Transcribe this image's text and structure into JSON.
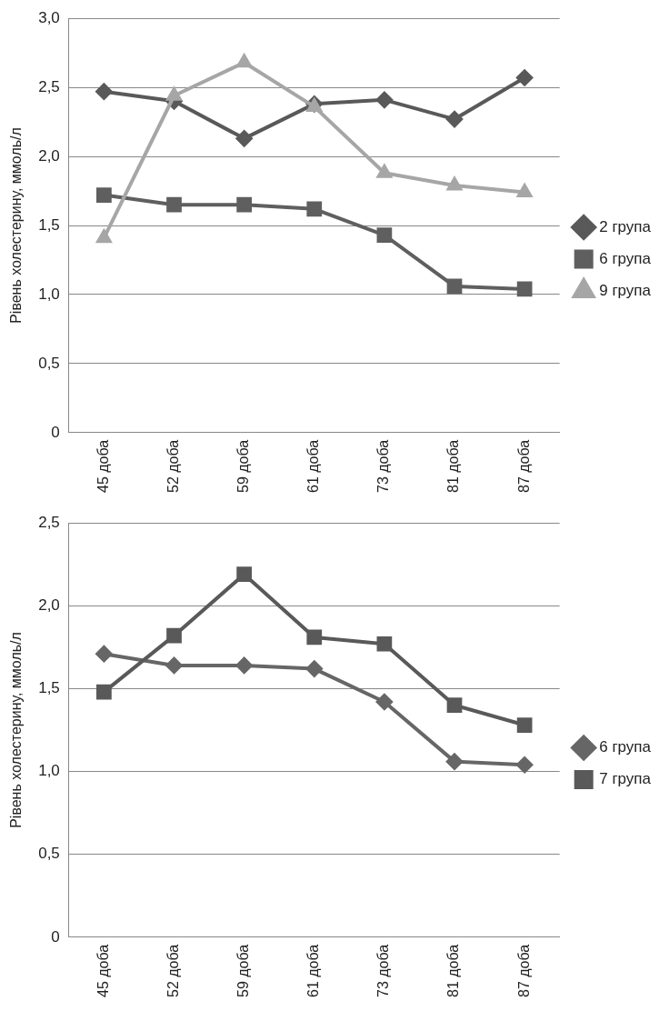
{
  "chart_data": [
    {
      "type": "line",
      "ylabel": "Рівень холестерину, ммоль/л",
      "categories": [
        "45 доба",
        "52 доба",
        "59 доба",
        "61 доба",
        "73 доба",
        "81 доба",
        "87 доба"
      ],
      "series": [
        {
          "name": "2 група",
          "color": "#595959",
          "marker": "diamond",
          "values": [
            2.47,
            2.4,
            2.13,
            2.38,
            2.41,
            2.27,
            2.57
          ]
        },
        {
          "name": "6 група",
          "color": "#5f5f5f",
          "marker": "square",
          "values": [
            1.72,
            1.65,
            1.65,
            1.62,
            1.43,
            1.06,
            1.04
          ]
        },
        {
          "name": "9 група",
          "color": "#a6a6a6",
          "marker": "triangle",
          "values": [
            1.41,
            2.44,
            2.68,
            2.36,
            1.88,
            1.79,
            1.74
          ]
        }
      ],
      "ylim": [
        0,
        3
      ],
      "yticks": [
        0,
        {
          "value": 0.5,
          "label": "0,5"
        },
        {
          "value": 1,
          "label": "1,0"
        },
        {
          "value": 1.5,
          "label": "1,5"
        },
        {
          "value": 2,
          "label": "2,0"
        },
        {
          "value": 2.5,
          "label": "2,5"
        },
        {
          "value": 3,
          "label": "3,0"
        }
      ],
      "grid": "y",
      "legend": "right",
      "line_style": "solid"
    },
    {
      "type": "line",
      "ylabel": "Рівень холестерину, ммоль/л",
      "categories": [
        "45 доба",
        "52 доба",
        "59 доба",
        "61 доба",
        "73 доба",
        "81 доба",
        "87 доба"
      ],
      "series": [
        {
          "name": "6 група",
          "color": "#666666",
          "marker": "diamond",
          "values": [
            1.71,
            1.64,
            1.64,
            1.62,
            1.42,
            1.06,
            1.04
          ]
        },
        {
          "name": "7 група",
          "color": "#595959",
          "marker": "square",
          "values": [
            1.48,
            1.82,
            2.19,
            1.81,
            1.77,
            1.4,
            1.28
          ]
        }
      ],
      "ylim": [
        0,
        2.5
      ],
      "yticks": [
        0,
        {
          "value": 0.5,
          "label": "0,5"
        },
        {
          "value": 1,
          "label": "1,0"
        },
        {
          "value": 1.5,
          "label": "1,5"
        },
        {
          "value": 2,
          "label": "2,0"
        },
        {
          "value": 2.5,
          "label": "2,5"
        }
      ],
      "grid": "y",
      "legend": "right",
      "line_style": "solid"
    }
  ]
}
